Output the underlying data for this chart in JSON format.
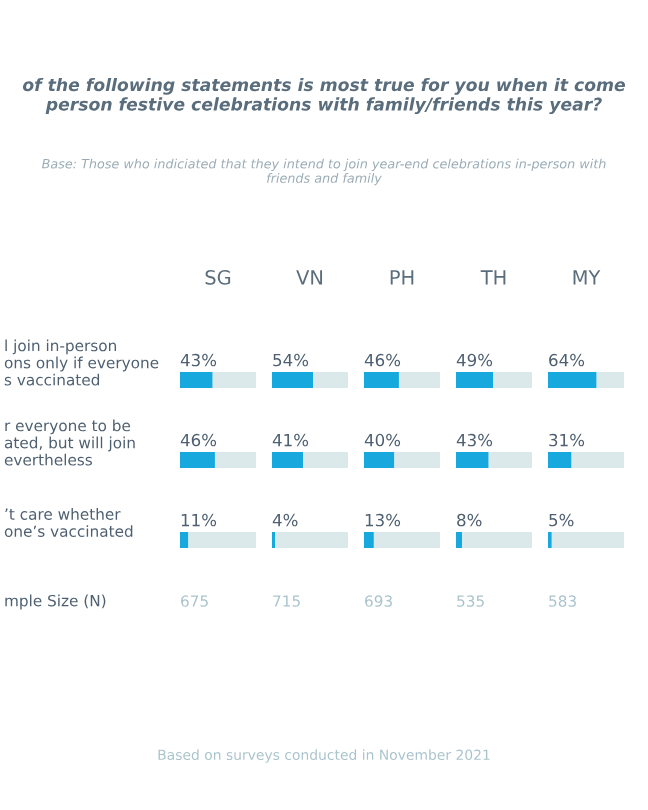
{
  "chart_data": [
    {
      "type": "other",
      "title": "of the following statements is most true for you when it come\nperson festive celebrations with family/friends this year?",
      "subtitle": "Base: Those who indiciated that they intend to join year-end celebrations in-person with\nfriends and family",
      "annotations": [
        "mple Size (N)",
        "Based on surveys conducted in November 2021"
      ]
    },
    {
      "type": "bar",
      "orientation": "horizontal",
      "stacked": true,
      "title": "SG",
      "categories": [
        "l join in-person\nons only if everyone\ns vaccinated",
        "r everyone to be\nated, but will join\nevertheless",
        "’t care whether\none’s vaccinated"
      ],
      "xlim": [
        0,
        100
      ],
      "tick_labels": "y",
      "annotations": [
        "675"
      ],
      "series": [
        {
          "color": "#17a9dd",
          "values": [
            43,
            46,
            11
          ],
          "value_labels": [
            "43%",
            "46%",
            "11%"
          ]
        },
        {
          "color": "#dce9ea",
          "values": [
            57,
            54,
            89
          ]
        }
      ]
    },
    {
      "type": "bar",
      "orientation": "horizontal",
      "stacked": true,
      "title": "VN",
      "categories": [
        null,
        null,
        null
      ],
      "xlim": [
        0,
        100
      ],
      "tick_labels": false,
      "annotations": [
        "715"
      ],
      "series": [
        {
          "color": "#17a9dd",
          "values": [
            54,
            41,
            4
          ],
          "value_labels": [
            "54%",
            "41%",
            "4%"
          ]
        },
        {
          "color": "#dce9ea",
          "values": [
            46,
            59,
            96
          ]
        }
      ]
    },
    {
      "type": "bar",
      "orientation": "horizontal",
      "stacked": true,
      "title": "PH",
      "categories": [
        null,
        null,
        null
      ],
      "xlim": [
        0,
        100
      ],
      "tick_labels": false,
      "annotations": [
        "693"
      ],
      "series": [
        {
          "color": "#17a9dd",
          "values": [
            46,
            40,
            13
          ],
          "value_labels": [
            "46%",
            "40%",
            "13%"
          ]
        },
        {
          "color": "#dce9ea",
          "values": [
            54,
            60,
            87
          ]
        }
      ]
    },
    {
      "type": "bar",
      "orientation": "horizontal",
      "stacked": true,
      "title": "TH",
      "categories": [
        null,
        null,
        null
      ],
      "xlim": [
        0,
        100
      ],
      "tick_labels": false,
      "annotations": [
        "535"
      ],
      "series": [
        {
          "color": "#17a9dd",
          "values": [
            49,
            43,
            8
          ],
          "value_labels": [
            "49%",
            "43%",
            "8%"
          ]
        },
        {
          "color": "#dce9ea",
          "values": [
            51,
            57,
            92
          ]
        }
      ]
    },
    {
      "type": "bar",
      "orientation": "horizontal",
      "stacked": true,
      "title": "MY",
      "categories": [
        null,
        null,
        null
      ],
      "xlim": [
        0,
        100
      ],
      "tick_labels": false,
      "annotations": [
        "583"
      ],
      "series": [
        {
          "color": "#17a9dd",
          "values": [
            64,
            31,
            5
          ],
          "value_labels": [
            "64%",
            "31%",
            "5%"
          ]
        },
        {
          "color": "#dce9ea",
          "values": [
            36,
            69,
            95
          ]
        }
      ]
    }
  ]
}
